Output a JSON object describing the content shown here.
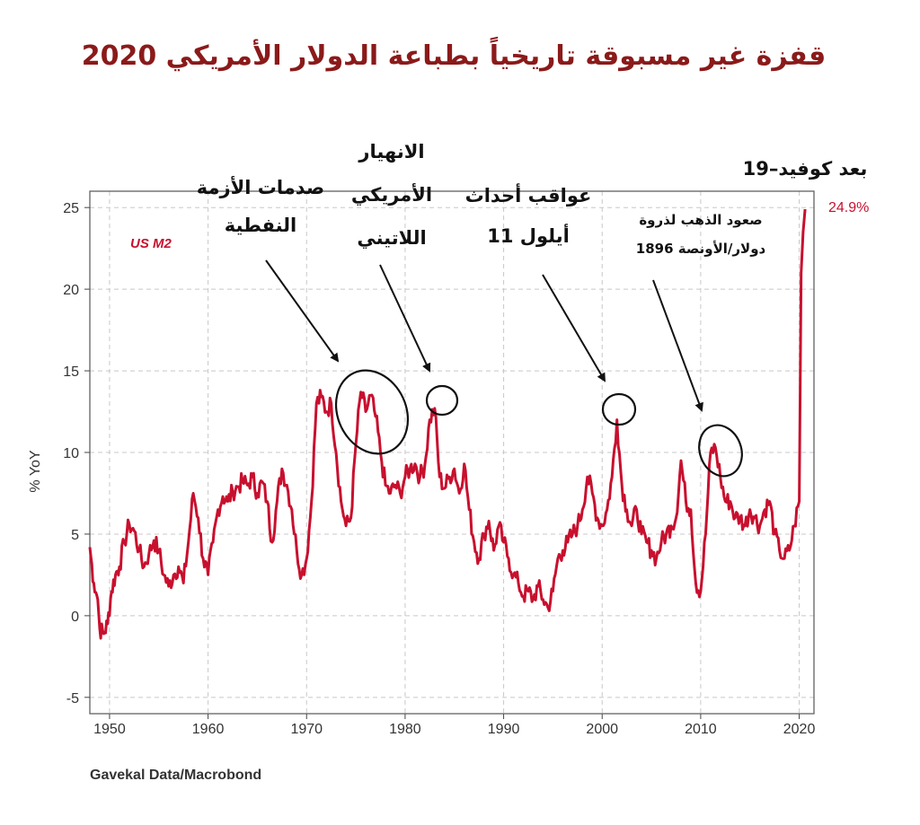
{
  "title": "قفزة غير مسبوقة تاريخياً بطباعة الدولار الأمريكي 2020",
  "source": "Gavekal Data/Macrobond",
  "colors": {
    "series": "#c8102e",
    "title": "#8b1a1a"
  },
  "chart_data": {
    "type": "line",
    "ylabel": "% YoY",
    "xlabel": "",
    "xlim": [
      1948,
      2021.5
    ],
    "ylim": [
      -6,
      26
    ],
    "grid": true,
    "x_ticks": [
      1950,
      1960,
      1970,
      1980,
      1990,
      2000,
      2010,
      2020
    ],
    "y_ticks": [
      -5,
      0,
      5,
      10,
      15,
      20,
      25
    ],
    "series": [
      {
        "name": "US M2",
        "end_label": "24.9%",
        "x": [
          1948.0,
          1948.4,
          1948.8,
          1949.0,
          1949.4,
          1949.8,
          1950.2,
          1950.6,
          1951.0,
          1951.5,
          1952.0,
          1952.5,
          1953.0,
          1953.5,
          1954.0,
          1954.5,
          1955.0,
          1955.5,
          1956.0,
          1956.5,
          1957.0,
          1957.5,
          1958.0,
          1958.5,
          1959.0,
          1959.5,
          1960.0,
          1960.5,
          1961.0,
          1961.5,
          1962.0,
          1962.5,
          1963.0,
          1963.5,
          1964.0,
          1964.5,
          1965.0,
          1965.5,
          1966.0,
          1966.5,
          1967.0,
          1967.5,
          1968.0,
          1968.5,
          1969.0,
          1969.5,
          1970.0,
          1970.5,
          1971.0,
          1971.5,
          1972.0,
          1972.5,
          1973.0,
          1973.5,
          1974.0,
          1974.5,
          1975.0,
          1975.5,
          1976.0,
          1976.5,
          1977.0,
          1977.5,
          1978.0,
          1978.5,
          1979.0,
          1979.5,
          1980.0,
          1980.5,
          1981.0,
          1981.5,
          1982.0,
          1982.5,
          1983.0,
          1983.5,
          1984.0,
          1984.5,
          1985.0,
          1985.5,
          1986.0,
          1986.5,
          1987.0,
          1987.5,
          1988.0,
          1988.5,
          1989.0,
          1989.5,
          1990.0,
          1990.5,
          1991.0,
          1991.5,
          1992.0,
          1992.5,
          1993.0,
          1993.5,
          1994.0,
          1994.5,
          1995.0,
          1995.5,
          1996.0,
          1996.5,
          1997.0,
          1997.5,
          1998.0,
          1998.5,
          1999.0,
          1999.5,
          2000.0,
          2000.5,
          2001.0,
          2001.5,
          2002.0,
          2002.5,
          2003.0,
          2003.5,
          2004.0,
          2004.5,
          2005.0,
          2005.5,
          2006.0,
          2006.5,
          2007.0,
          2007.5,
          2008.0,
          2008.5,
          2009.0,
          2009.5,
          2010.0,
          2010.5,
          2011.0,
          2011.5,
          2012.0,
          2012.5,
          2013.0,
          2013.5,
          2014.0,
          2014.5,
          2015.0,
          2015.5,
          2016.0,
          2016.5,
          2017.0,
          2017.5,
          2018.0,
          2018.5,
          2019.0,
          2019.5,
          2020.0,
          2020.2,
          2020.4,
          2020.6
        ],
        "y": [
          4.2,
          2.0,
          1.0,
          -0.8,
          -1.1,
          -0.5,
          1.5,
          2.5,
          3.0,
          4.5,
          5.6,
          5.2,
          4.0,
          3.0,
          3.8,
          4.6,
          4.0,
          2.5,
          1.8,
          2.5,
          3.0,
          2.0,
          4.5,
          7.5,
          6.0,
          3.5,
          2.5,
          4.5,
          6.5,
          7.3,
          7.0,
          7.6,
          7.9,
          8.2,
          8.0,
          8.5,
          7.5,
          8.2,
          7.0,
          4.5,
          7.0,
          9.0,
          8.0,
          6.5,
          4.0,
          2.5,
          3.5,
          7.0,
          13.0,
          13.4,
          12.5,
          13.0,
          10.0,
          7.0,
          5.5,
          6.0,
          10.5,
          13.7,
          12.5,
          13.5,
          12.2,
          10.0,
          8.0,
          7.5,
          8.0,
          7.5,
          8.5,
          9.0,
          9.3,
          8.5,
          9.2,
          12.0,
          12.7,
          8.5,
          7.8,
          8.5,
          9.0,
          7.5,
          9.3,
          6.5,
          4.5,
          3.5,
          5.0,
          5.8,
          4.0,
          5.5,
          4.5,
          3.5,
          2.5,
          2.0,
          1.2,
          1.5,
          1.0,
          1.8,
          1.0,
          0.5,
          1.5,
          3.5,
          4.0,
          4.5,
          5.0,
          5.5,
          6.5,
          8.5,
          7.5,
          6.0,
          5.5,
          6.5,
          8.5,
          12.0,
          8.0,
          6.5,
          5.5,
          6.5,
          5.0,
          4.5,
          4.0,
          3.5,
          4.5,
          5.0,
          5.5,
          6.0,
          9.5,
          7.0,
          6.5,
          2.0,
          1.5,
          5.0,
          10.0,
          10.3,
          8.5,
          7.0,
          7.0,
          6.0,
          6.0,
          5.5,
          6.5,
          6.0,
          5.5,
          6.5,
          7.0,
          5.0,
          4.0,
          3.5,
          4.0,
          5.5,
          7.0,
          21.0,
          23.5,
          24.9
        ]
      }
    ],
    "annotations": [
      {
        "text_lines": [
          "صدمات الأزمة",
          "النفطية"
        ],
        "x": 1975.5,
        "y": 11.8
      },
      {
        "text_lines": [
          "الانهيار",
          "الأمريكي",
          "اللاتيني"
        ],
        "x": 1983.5,
        "y": 12.7
      },
      {
        "text_lines": [
          "عواقب أحداث",
          "11 أيلول"
        ],
        "x": 2001.8,
        "y": 12.2
      },
      {
        "text_lines": [
          "صعود الذهب لذروة",
          "1896 دولار/الأونصة"
        ],
        "x": 2012.2,
        "y": 9.8
      },
      {
        "text_lines": [
          "بعد كوفيد–19"
        ],
        "x": 2020.6,
        "y": 24.9
      }
    ]
  }
}
